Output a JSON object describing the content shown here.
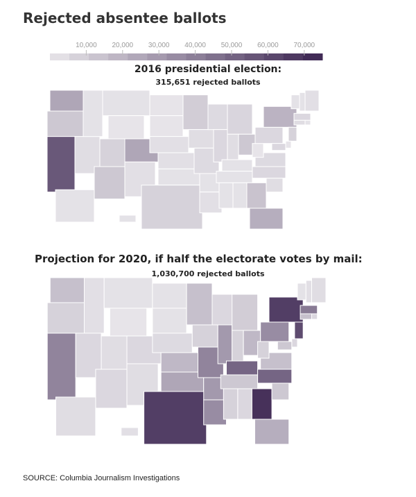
{
  "title": "Rejected absentee ballots",
  "source": "SOURCE: Columbia Journalism Investigations",
  "chart_data": [
    {
      "type": "choropleth",
      "legend": {
        "ticks": [
          "10,000",
          "20,000",
          "30,000",
          "40,000",
          "50,000",
          "60,000",
          "70,000"
        ],
        "range": [
          0,
          75000
        ],
        "colors": [
          "#e9e7eb",
          "#3b2450"
        ]
      },
      "title": "2016 presidential election:",
      "subtitle": "315,651 rejected ballots",
      "values": {
        "WA": 25000,
        "OR": 12000,
        "CA": 55000,
        "NV": 4000,
        "ID": 2000,
        "MT": 2000,
        "WY": 1000,
        "UT": 8000,
        "CO": 25000,
        "AZ": 12000,
        "NM": 3000,
        "ND": 1000,
        "SD": 1000,
        "NE": 3000,
        "KS": 3000,
        "OK": 2000,
        "TX": 8000,
        "MN": 10000,
        "IA": 4000,
        "MO": 5000,
        "AR": 2000,
        "LA": 3000,
        "WI": 5000,
        "IL": 6000,
        "MI": 7000,
        "IN": 4000,
        "OH": 12000,
        "KY": 2000,
        "TN": 2000,
        "MS": 2000,
        "AL": 2000,
        "GA": 14000,
        "FL": 22000,
        "SC": 4000,
        "NC": 6000,
        "VA": 5000,
        "WV": 1000,
        "PA": 6000,
        "NY": 20000,
        "VT": 2000,
        "NH": 2000,
        "ME": 3000,
        "MA": 6000,
        "CT": 4000,
        "RI": 2000,
        "NJ": 8000,
        "DE": 1000,
        "MD": 6000,
        "AK": 2000,
        "HI": 2000
      }
    },
    {
      "type": "choropleth",
      "title": "Projection for 2020, if half the electorate votes by mail:",
      "subtitle": "1,030,700 rejected ballots",
      "values": {
        "WA": 15000,
        "OR": 8000,
        "CA": 38000,
        "NV": 6000,
        "ID": 3000,
        "MT": 2000,
        "WY": 1000,
        "UT": 4000,
        "CO": 6000,
        "AZ": 6000,
        "NM": 4000,
        "ND": 2000,
        "SD": 2000,
        "NE": 5000,
        "KS": 18000,
        "OK": 25000,
        "TX": 65000,
        "MN": 15000,
        "IA": 8000,
        "MO": 38000,
        "AR": 30000,
        "LA": 35000,
        "WI": 6000,
        "IL": 30000,
        "MI": 10000,
        "IN": 8000,
        "OH": 18000,
        "KY": 50000,
        "TN": 12000,
        "MS": 8000,
        "AL": 6000,
        "GA": 70000,
        "FL": 22000,
        "SC": 12000,
        "NC": 50000,
        "VA": 15000,
        "WV": 8000,
        "PA": 35000,
        "NY": 65000,
        "VT": 2000,
        "NH": 3000,
        "ME": 4000,
        "MA": 42000,
        "CT": 15000,
        "RI": 6000,
        "NJ": 60000,
        "DE": 6000,
        "MD": 12000,
        "AK": 4000,
        "HI": 3000
      }
    }
  ]
}
